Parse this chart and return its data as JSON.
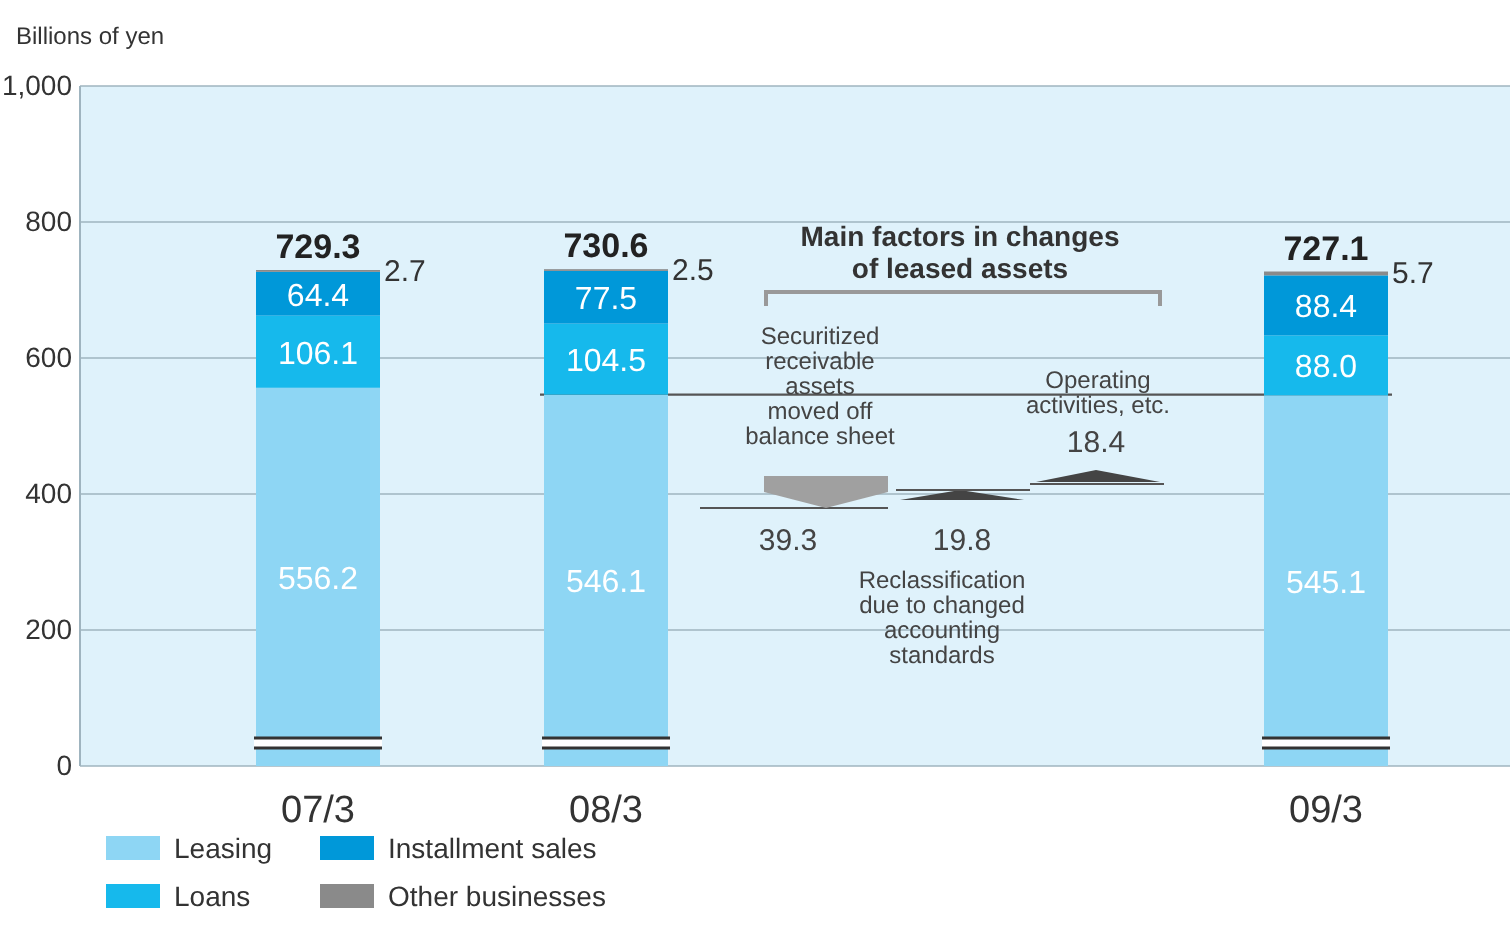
{
  "chart_data": {
    "type": "bar",
    "stacked": true,
    "ylabel": "Billions of yen",
    "categories": [
      "07/3",
      null,
      "08/3",
      null,
      null,
      null,
      null,
      "09/3"
    ],
    "series": [
      {
        "name": "Leasing",
        "color": "#8ed6f4",
        "values": [
          556.2,
          null,
          546.1,
          null,
          null,
          null,
          null,
          545.1
        ],
        "value_labels": [
          "556.2",
          null,
          "546.1",
          null,
          null,
          null,
          null,
          "545.1"
        ]
      },
      {
        "name": "Loans",
        "color": "#16b9ec",
        "values": [
          106.1,
          null,
          104.5,
          null,
          null,
          null,
          null,
          88.0
        ],
        "value_labels": [
          "106.1",
          null,
          "104.5",
          null,
          null,
          null,
          null,
          "88.0"
        ]
      },
      {
        "name": "Installment sales",
        "color": "#0098d9",
        "values": [
          64.4,
          null,
          77.5,
          null,
          null,
          null,
          null,
          88.4
        ],
        "value_labels": [
          "64.4",
          null,
          "77.5",
          null,
          null,
          null,
          null,
          "88.4"
        ]
      },
      {
        "name": "Other businesses",
        "color": "#8a8a8a",
        "values": [
          2.7,
          null,
          2.5,
          null,
          null,
          null,
          null,
          5.7
        ],
        "value_labels": [
          "2.7",
          null,
          "2.5",
          null,
          null,
          null,
          null,
          "5.7"
        ]
      }
    ],
    "totals": [
      "729.3",
      null,
      "730.6",
      null,
      null,
      null,
      null,
      "727.1"
    ],
    "ylim": [
      0,
      1000
    ],
    "yticks": [
      0,
      200,
      400,
      600,
      800,
      {
        "value": 1000,
        "label": "1,000"
      }
    ],
    "grid": "y",
    "legend": "bottom",
    "ref_lines": [
      {
        "axis": "y",
        "value": 546.1,
        "color": "#555555"
      }
    ],
    "annotations": [
      "Main factors in changes of leased assets",
      "Securitized receivable assets moved off balance sheet",
      "39.3",
      "19.8",
      "Reclassification due to changed accounting standards",
      "Operating activities, etc.",
      "18.4"
    ]
  }
}
